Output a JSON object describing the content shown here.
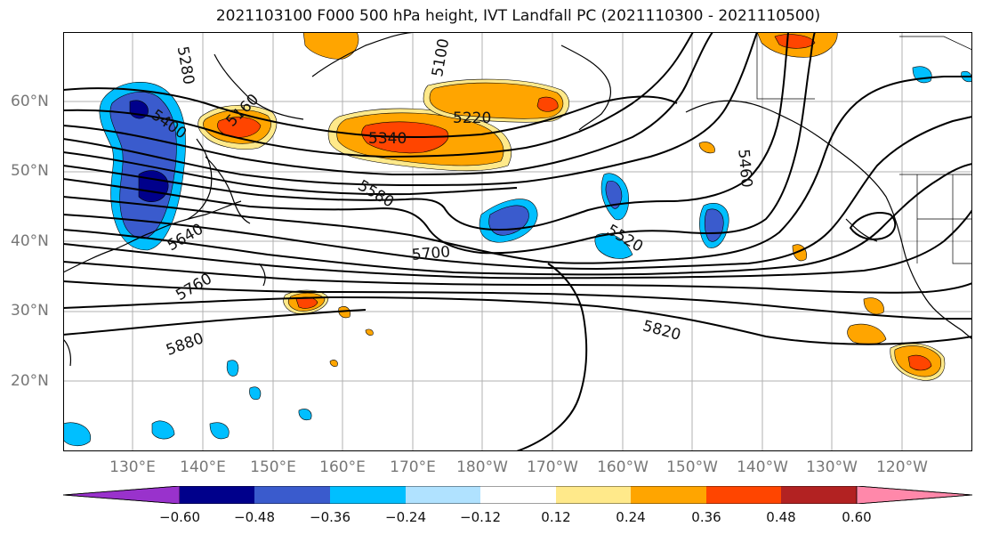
{
  "title": "2021103100 F000 500 hPa height, IVT Landfall PC (2021110300 - 2021110500)",
  "lat_labels": [
    "60°N",
    "50°N",
    "40°N",
    "30°N",
    "20°N"
  ],
  "lon_labels": [
    "130°E",
    "140°E",
    "150°E",
    "160°E",
    "170°E",
    "180°W",
    "170°W",
    "160°W",
    "150°W",
    "140°W",
    "130°W",
    "120°W"
  ],
  "contour_labels": [
    "5280",
    "5160",
    "5100",
    "5220",
    "5340",
    "5400",
    "5460",
    "5580",
    "5520",
    "5640",
    "5700",
    "5760",
    "5880",
    "5820"
  ],
  "colorbar": {
    "ticks": [
      "−0.60",
      "−0.48",
      "−0.36",
      "−0.24",
      "−0.12",
      "0.12",
      "0.24",
      "0.36",
      "0.48",
      "0.60"
    ],
    "colors": [
      "#9932CC",
      "#00008B",
      "#3A5BCD",
      "#00BFFF",
      "#B0E2FF",
      "#FFFFFF",
      "#FFE98A",
      "#FFA500",
      "#FF4500",
      "#B22222",
      "#FF88AA"
    ]
  }
}
